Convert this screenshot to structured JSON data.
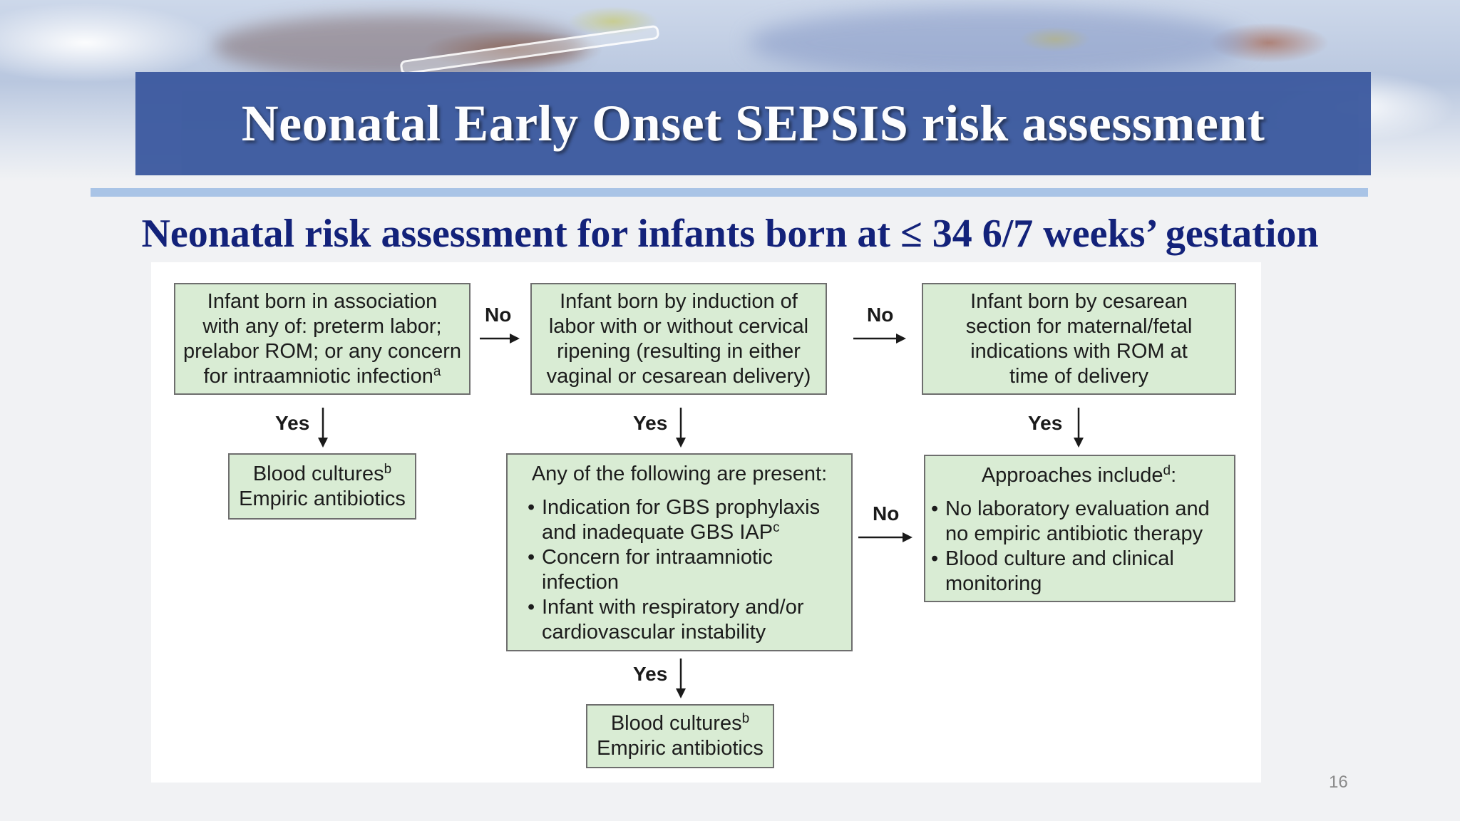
{
  "slide": {
    "title": "Neonatal Early Onset SEPSIS risk assessment",
    "subtitle": "Neonatal risk assessment for infants born at ≤ 34 6/7 weeks’ gestation",
    "page_number": "16"
  },
  "flowchart": {
    "box_preterm": {
      "lines": [
        "Infant born in association",
        "with any of: preterm labor;",
        "prelabor ROM; or any concern",
        "for intraamniotic infection"
      ],
      "footnote": "a"
    },
    "box_induction": {
      "lines": [
        "Infant born by induction of",
        "labor with or without cervical",
        "ripening (resulting in either",
        "vaginal or cesarean delivery)"
      ]
    },
    "box_cesarean": {
      "lines": [
        "Infant born by cesarean",
        "section for maternal/fetal",
        "indications with ROM at",
        "time of delivery"
      ]
    },
    "box_cultures_left": {
      "line1": "Blood cultures",
      "footnote": "b",
      "line2": "Empiric antibiotics"
    },
    "box_criteria": {
      "heading": "Any of the following are present:",
      "item1_line1": "Indication for GBS prophylaxis",
      "item1_line2": "and inadequate GBS IAP",
      "item1_footnote": "c",
      "item2_line1": "Concern for intraamniotic",
      "item2_line2": "infection",
      "item3_line1": "Infant with respiratory and/or",
      "item3_line2": "cardiovascular instability"
    },
    "box_approaches": {
      "heading": "Approaches include",
      "heading_footnote": "d",
      "heading_suffix": ":",
      "item1_line1": "No laboratory evaluation and",
      "item1_line2": "no empiric antibiotic therapy",
      "item2_line1": "Blood culture and clinical",
      "item2_line2": "monitoring"
    },
    "box_cultures_bottom": {
      "line1": "Blood cultures",
      "footnote": "b",
      "line2": "Empiric antibiotics"
    },
    "labels": {
      "no": "No",
      "yes": "Yes"
    },
    "colors": {
      "box_fill": "#d9ecd4",
      "box_border": "#6e6e6e",
      "title_band": "#3c5a9f",
      "subtitle_text": "#13227a"
    }
  }
}
